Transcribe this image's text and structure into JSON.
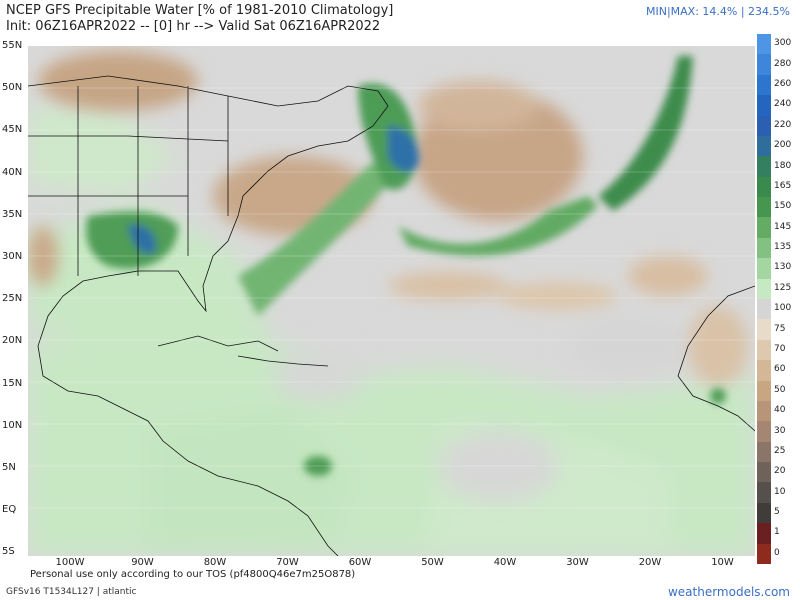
{
  "header": {
    "title": "NCEP GFS Precipitable Water [% of 1981-2010 Climatology]",
    "subtitle": "Init: 06Z16APR2022 -- [0] hr --> Valid Sat 06Z16APR2022",
    "minmax": "MIN|MAX: 14.4% | 234.5%"
  },
  "map": {
    "lat_labels": [
      "55N",
      "50N",
      "45N",
      "40N",
      "35N",
      "30N",
      "25N",
      "20N",
      "15N",
      "10N",
      "5N",
      "EQ",
      "5S"
    ],
    "lon_labels": [
      "100W",
      "90W",
      "80W",
      "70W",
      "60W",
      "50W",
      "40W",
      "30W",
      "20W",
      "10W"
    ]
  },
  "colorbar": {
    "labels": [
      "300",
      "280",
      "260",
      "240",
      "220",
      "200",
      "180",
      "165",
      "150",
      "145",
      "135",
      "130",
      "125",
      "100",
      "75",
      "70",
      "60",
      "50",
      "40",
      "30",
      "25",
      "20",
      "10",
      "5",
      "1",
      "0"
    ],
    "colors": [
      "#4f95e6",
      "#3d86dc",
      "#2c76d0",
      "#2466bf",
      "#2b5fb1",
      "#2f6d9c",
      "#338060",
      "#3a8a4e",
      "#46964f",
      "#64ab64",
      "#82c181",
      "#a4d6a1",
      "#c6e9c4",
      "#d5d5d5",
      "#e9dbc9",
      "#dfc9ae",
      "#d4b796",
      "#c8a682",
      "#b89479",
      "#a58673",
      "#8b7568",
      "#6e625b",
      "#56504c",
      "#3f3c3a",
      "#6a2020",
      "#8e2b1e"
    ]
  },
  "footer": {
    "tos": "Personal use only according to our TOS (pf4800Q46e7m25O878)",
    "model": "GFSv16 T1534L127 | atlantic",
    "brand": "weathermodels.com"
  }
}
